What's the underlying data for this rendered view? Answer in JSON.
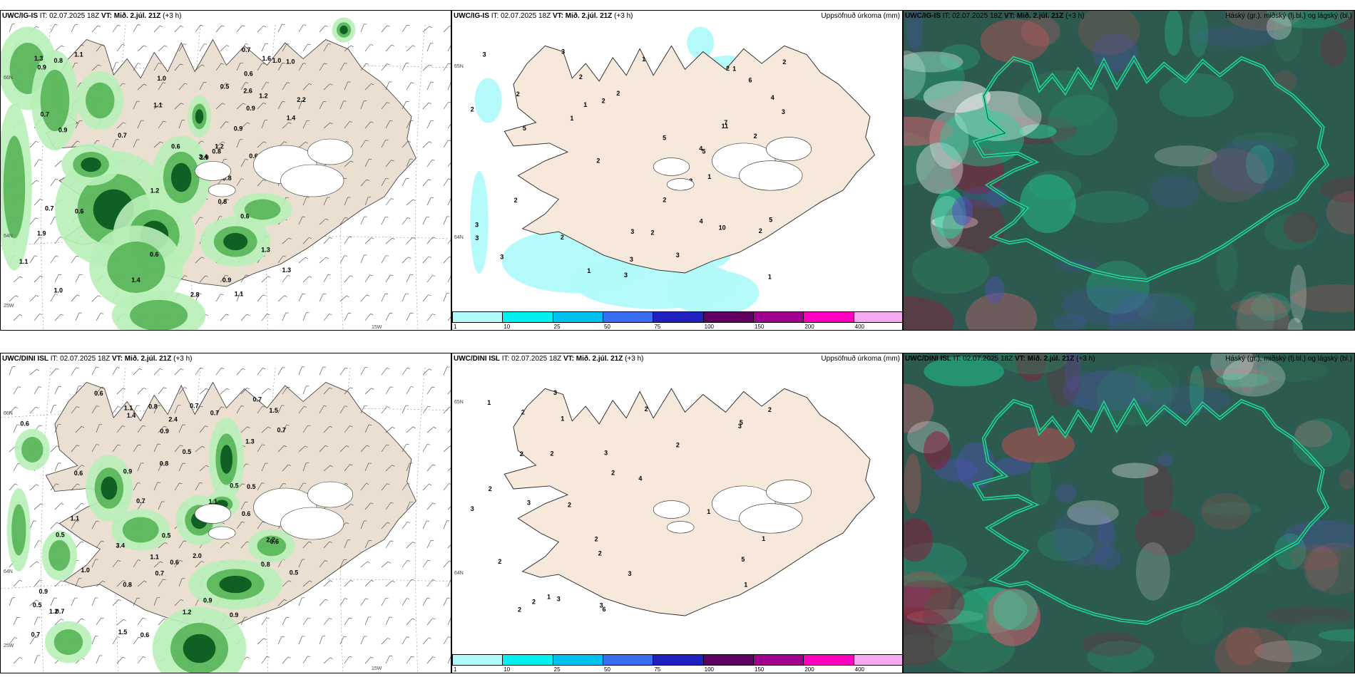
{
  "rows": [
    {
      "model": "UWC/IG-IS",
      "it_label": "IT:",
      "it_value": "02.07.2025 18Z",
      "vt_label": "VT:",
      "vt_value": "Mið. 2.júl. 21Z",
      "lead": "(+3 h)",
      "wind_labels": [
        "0.9",
        "1.0",
        "0.8",
        "0.6",
        "0.6",
        "0.5",
        "0.6",
        "1.3",
        "0.9",
        "1.2",
        "0.5",
        "1.0",
        "1.0",
        "0.7",
        "1.3",
        "1.4",
        "1.1",
        "1.2",
        "0.9",
        "1.1",
        "1.3",
        "0.7",
        "0.6",
        "0.8",
        "1.2",
        "2.8",
        "1.1",
        "0.8",
        "2.6",
        "1.9",
        "2.9",
        "0.6",
        "1.0",
        "0.9",
        "0.7",
        "0.6",
        "0.8",
        "1.1",
        "1.6",
        "0.9",
        "1.4",
        "0.7",
        "2.2",
        "3.4"
      ],
      "wind_axis": [
        "66N",
        "64N",
        "25W",
        "15W"
      ],
      "precip_title": "Uppsöfnuð úrkoma (mm)",
      "precip_labels": [
        "2",
        "1",
        "2",
        "1",
        "5",
        "5",
        "1",
        "2",
        "10",
        "4",
        "5",
        "3",
        "2",
        "3",
        "3",
        "1",
        "3",
        "2",
        "2",
        "3",
        "4",
        "2",
        "7",
        "11",
        "1",
        "2",
        "3",
        "2",
        "2",
        "1",
        "1",
        "2",
        "3",
        "6",
        "4",
        "2",
        "3",
        "3",
        "3",
        "2",
        "2",
        "3",
        "3",
        "1",
        "5"
      ],
      "precip_axis": [
        "65N",
        "64N"
      ],
      "cloud_title": "Háský (gr.), miðský (fj.bl.) og lágský (bl.)"
    },
    {
      "model": "UWC/DINI ISL",
      "it_label": "IT:",
      "it_value": "02.07.2025 18Z",
      "vt_label": "VT:",
      "vt_value": "Mið. 2.júl. 21Z",
      "lead": "(+3 h)",
      "wind_labels": [
        "0.6",
        "0.7",
        "0.8",
        "1.2",
        "0.5",
        "0.7",
        "0.9",
        "0.7",
        "1.1",
        "0.9",
        "0.5",
        "1.2",
        "0.6",
        "0.5",
        "1.1",
        "2.0",
        "0.9",
        "0.7",
        "0.6",
        "0.5",
        "0.5",
        "1.0",
        "0.6",
        "1.3",
        "0.9",
        "0.7",
        "1.1",
        "0.6",
        "0.9",
        "1.5",
        "0.6",
        "1.4",
        "0.7",
        "0.8",
        "0.7",
        "0.8",
        "0.5",
        "0.8",
        "0.6",
        "2.2",
        "1.1",
        "0.7",
        "2.4",
        "3.4",
        "1.5",
        "0.5"
      ],
      "wind_axis": [
        "66N",
        "64N",
        "25W",
        "15W"
      ],
      "precip_title": "Uppsöfnuð úrkoma (mm)",
      "precip_labels": [
        "3",
        "2",
        "1",
        "2",
        "2",
        "2",
        "1",
        "2",
        "2",
        "1",
        "3",
        "3",
        "3",
        "5",
        "2",
        "6",
        "5",
        "5",
        "2",
        "2",
        "2",
        "3",
        "1",
        "4",
        "3",
        "2",
        "2",
        "2",
        "3",
        "1",
        "1",
        "1",
        "3",
        "2"
      ],
      "precip_axis": [
        "65N",
        "64N"
      ],
      "cloud_title": "Háský (gr.), miðský (fj.bl.) og lágský (bl.)"
    }
  ],
  "precip_legend": {
    "ticks": [
      "1",
      "10",
      "25",
      "50",
      "75",
      "100",
      "150",
      "200",
      "400"
    ],
    "colors": [
      "#b0fafa",
      "#00f0f0",
      "#00c0f0",
      "#3a6ef0",
      "#2020c0",
      "#600060",
      "#a00090",
      "#ff00c0",
      "#f4a8f0"
    ]
  },
  "colors": {
    "land": "#f6e9dc",
    "land_wind": "#eadfd0",
    "glacier": "#ffffff",
    "sea": "#ffffff",
    "green_light": "#b8f0b8",
    "green_mid": "#50b050",
    "green_dark": "#0c5a20",
    "cloud_base": "#2d5a50",
    "cloud_purple": "#8c1a3a",
    "cloud_blue": "#5050c0",
    "cloud_cyan": "#20d8a0"
  }
}
